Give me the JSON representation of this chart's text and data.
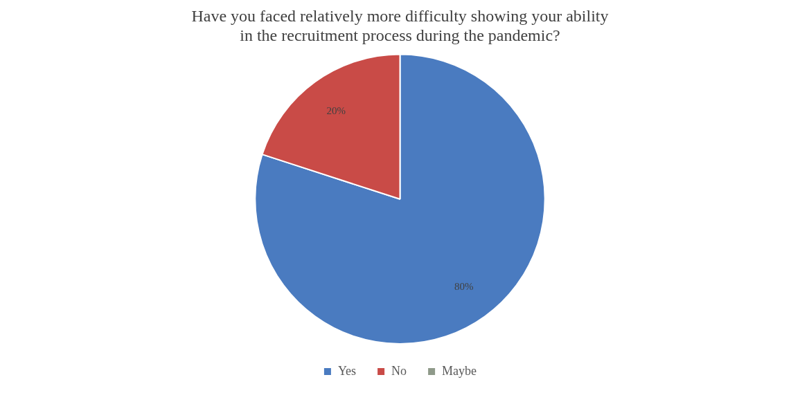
{
  "chart_data": {
    "type": "pie",
    "title": "Have you faced relatively more difficulty showing your ability in the recruitment process during the pandemic?",
    "categories": [
      "Yes",
      "No",
      "Maybe"
    ],
    "values": [
      80,
      20,
      0
    ],
    "colors": [
      "#4a7bc0",
      "#c94b47",
      "#8f9a8a"
    ],
    "value_labels": [
      "80%",
      "20%",
      null
    ],
    "legend": "bottom"
  }
}
